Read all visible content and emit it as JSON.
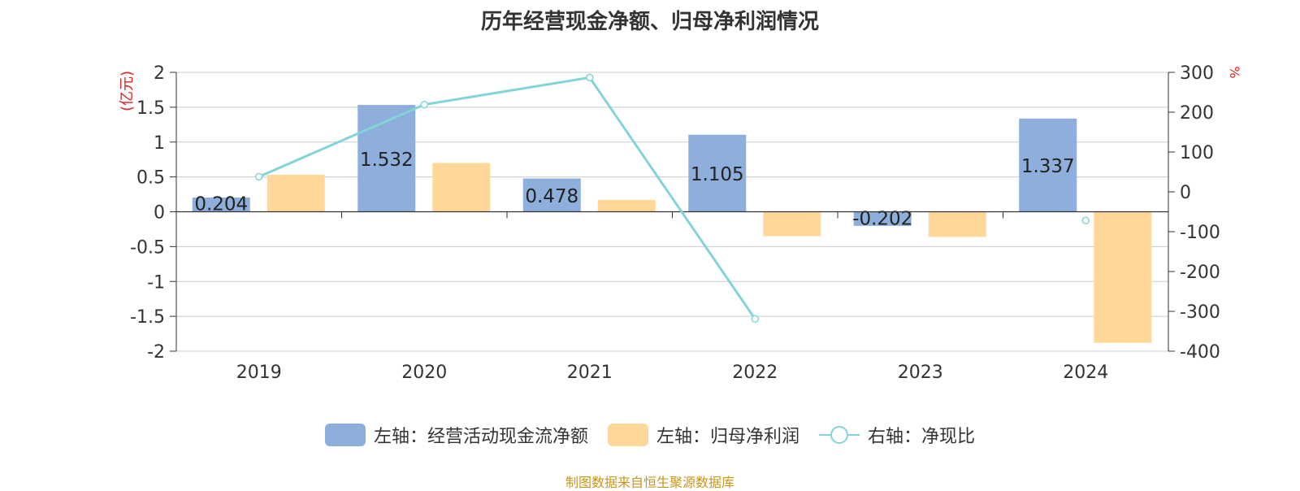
{
  "chart_data": {
    "type": "bar",
    "title": "历年经营现金净额、归母净利润情况",
    "categories": [
      "2019",
      "2020",
      "2021",
      "2022",
      "2023",
      "2024"
    ],
    "left_axis": {
      "unit_label": "(亿元)",
      "ylim": [
        -2,
        2
      ],
      "ticks": [
        "2",
        "1.5",
        "1",
        "0.5",
        "0",
        "-0.5",
        "-1",
        "-1.5",
        "-2"
      ]
    },
    "right_axis": {
      "unit_label": "%",
      "ylim": [
        -400,
        300
      ],
      "ticks": [
        "300",
        "200",
        "100",
        "0",
        "-100",
        "-200",
        "-300",
        "-400"
      ]
    },
    "series": [
      {
        "name": "左轴：经营活动现金流净额",
        "axis": "left",
        "kind": "bar",
        "color": "#8eaedb",
        "values": [
          0.204,
          1.532,
          0.478,
          1.105,
          -0.202,
          1.337
        ],
        "labels": [
          "0.204",
          "1.532",
          "0.478",
          "1.105",
          "-0.202",
          "1.337"
        ]
      },
      {
        "name": "左轴：归母净利润",
        "axis": "left",
        "kind": "bar",
        "color": "#ffd899",
        "values": [
          0.53,
          0.7,
          0.17,
          -0.35,
          -0.36,
          -1.88
        ]
      },
      {
        "name": "右轴：净现比",
        "axis": "right",
        "kind": "line",
        "color": "#82d4d9",
        "values": [
          38,
          219,
          287,
          -319,
          null,
          -72
        ]
      }
    ],
    "grid": true,
    "legend_position": "bottom"
  },
  "source_text": "制图数据来自恒生聚源数据库",
  "source_color": "#c8961e",
  "axis_unit_color": "#e02020"
}
